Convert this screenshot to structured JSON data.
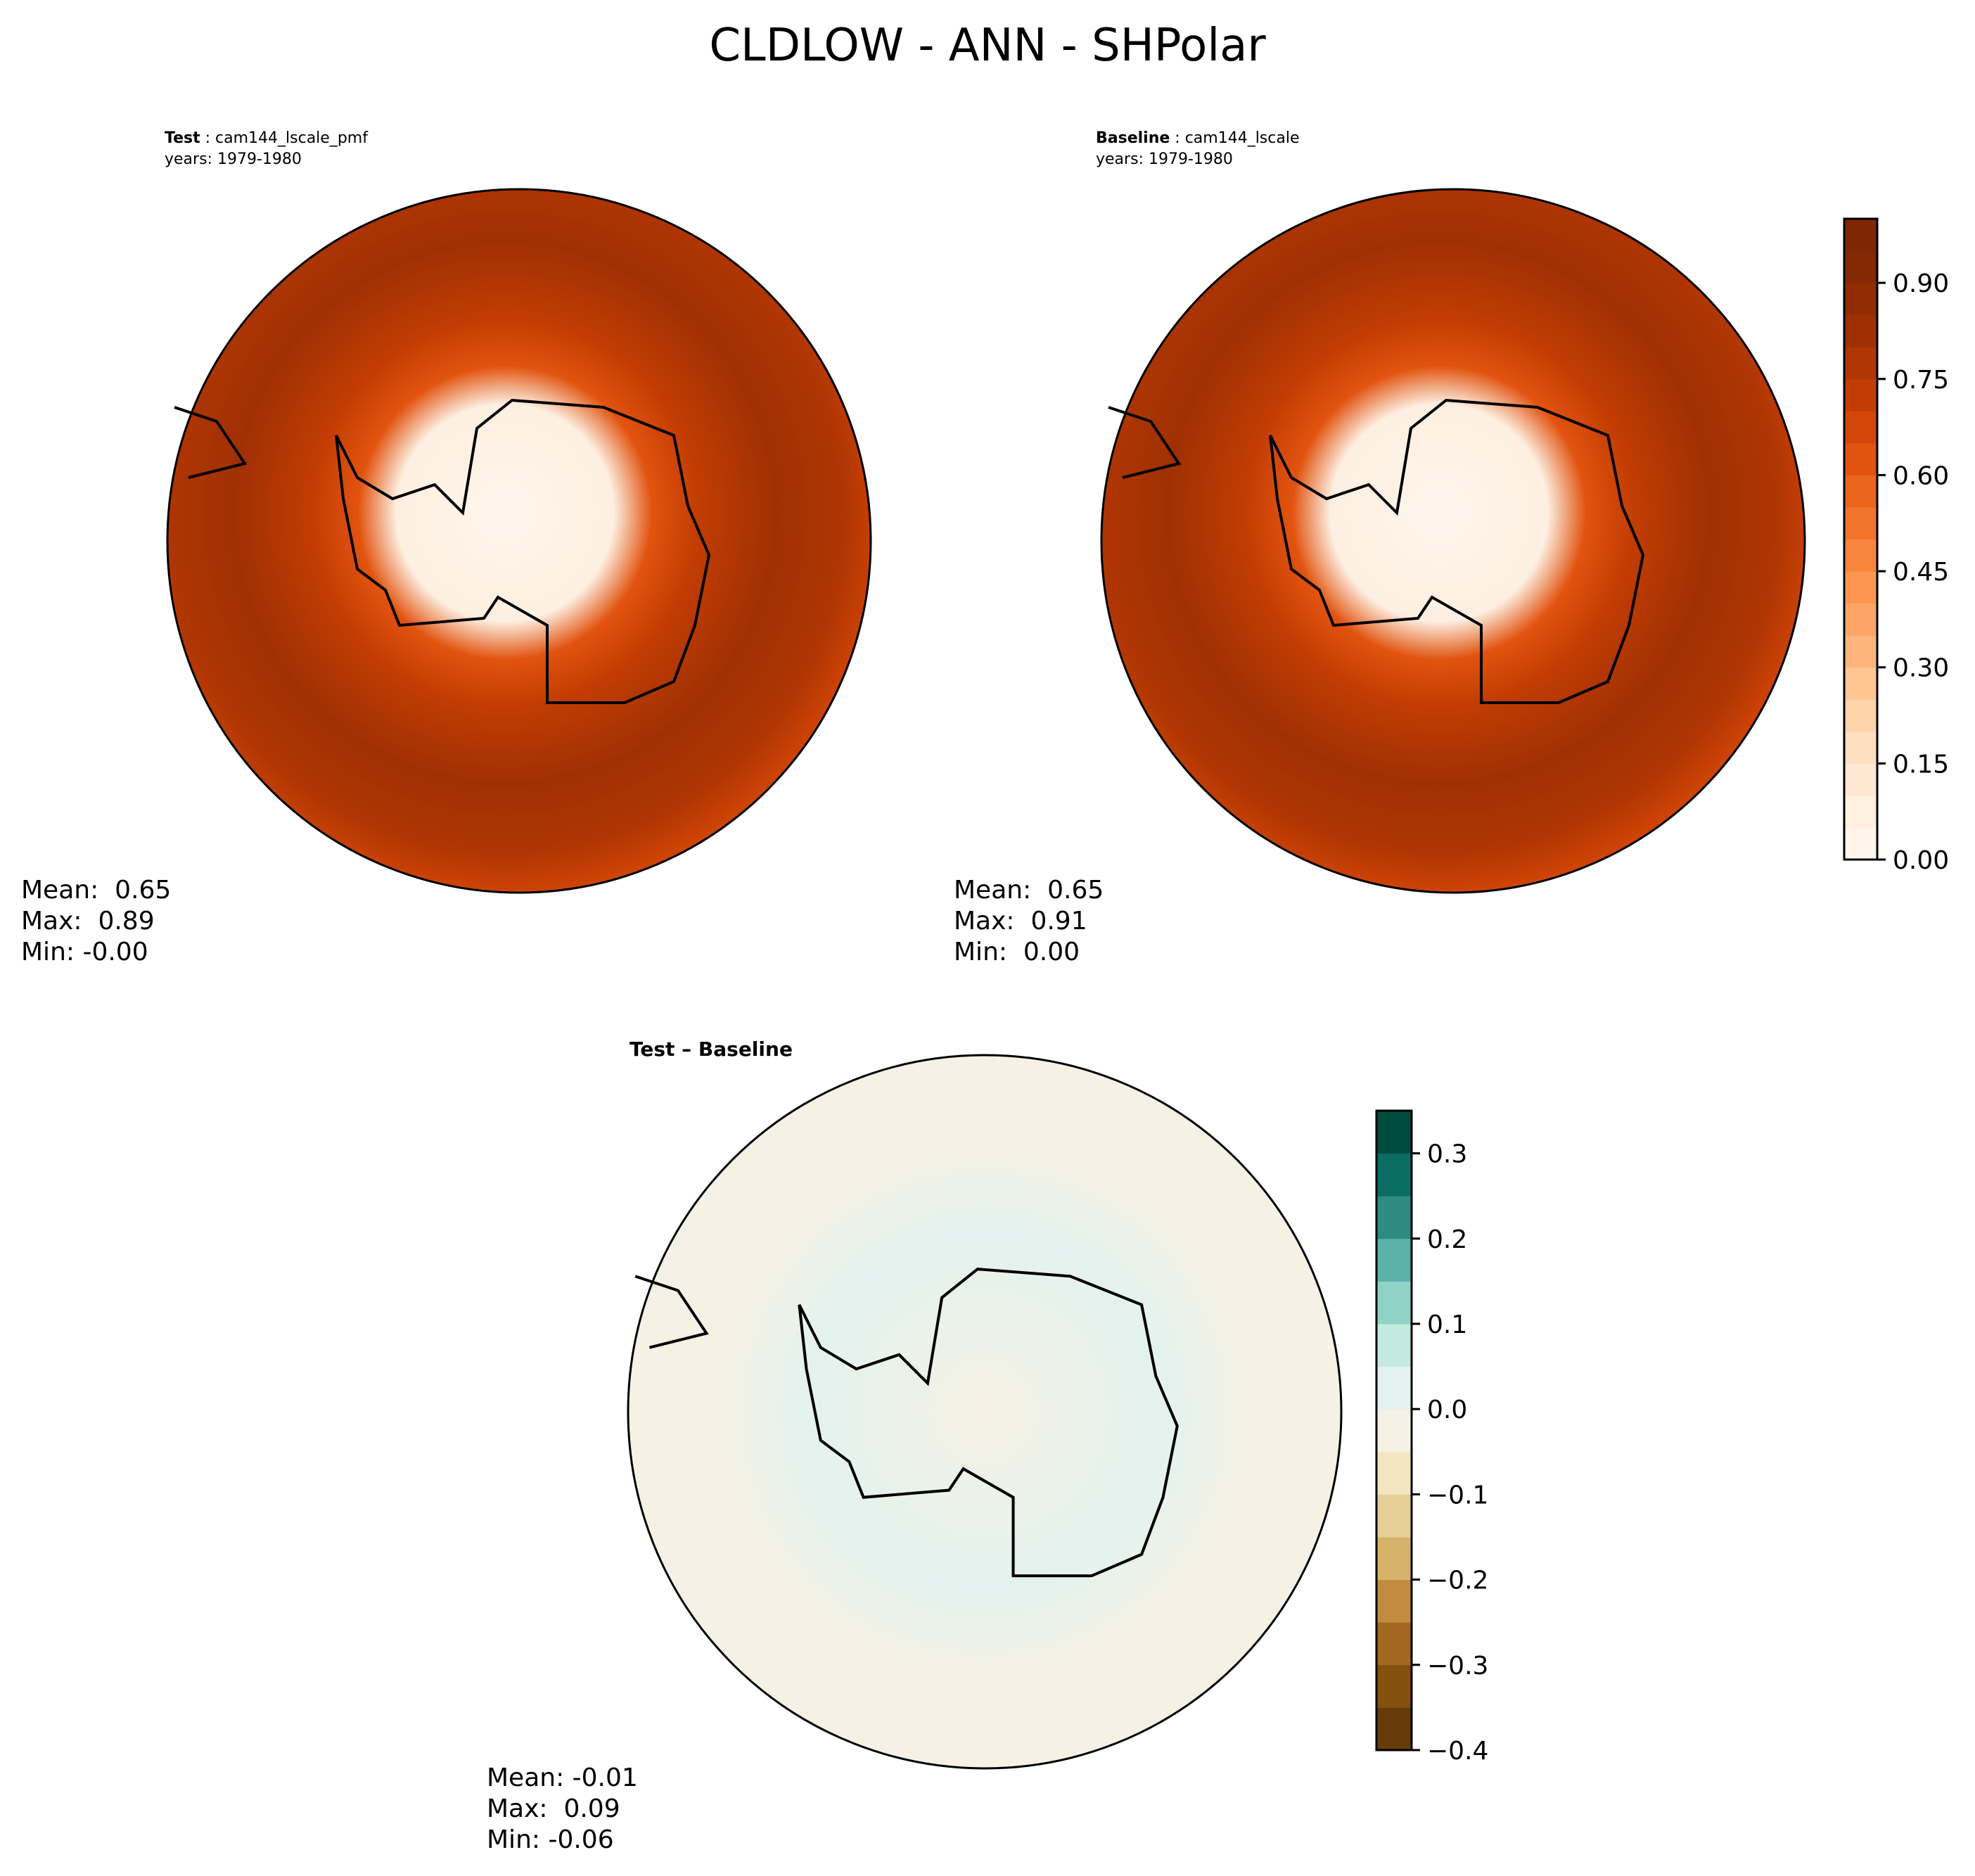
{
  "title": "CLDLOW - ANN - SHPolar",
  "panels": [
    {
      "label_bold": "Test",
      "label_rest": " : cam144_lscale_pmf",
      "years": "years: 1979-1980",
      "stats": {
        "mean": "Mean:  0.65",
        "max": "Max:  0.89",
        "min": "Min: -0.00"
      }
    },
    {
      "label_bold": "Baseline",
      "label_rest": " : cam144_lscale",
      "years": "years: 1979-1980",
      "stats": {
        "mean": "Mean:  0.65",
        "max": "Max:  0.91",
        "min": "Min:  0.00"
      }
    },
    {
      "label_bold": "Test – Baseline",
      "label_rest": "",
      "stats": {
        "mean": "Mean: -0.01",
        "max": "Max:  0.09",
        "min": "Min: -0.06"
      }
    }
  ],
  "chart_data": [
    {
      "type": "heatmap",
      "projection": "south-polar-stereographic",
      "variable": "CLDLOW",
      "panel": "Test",
      "colormap": "Oranges",
      "levels_range": [
        0,
        1.0
      ],
      "level_step": 0.05
    },
    {
      "type": "heatmap",
      "projection": "south-polar-stereographic",
      "variable": "CLDLOW",
      "panel": "Baseline",
      "colormap": "Oranges",
      "levels_range": [
        0,
        1.0
      ],
      "level_step": 0.05
    },
    {
      "type": "heatmap",
      "projection": "south-polar-stereographic",
      "variable": "CLDLOW",
      "panel": "Test - Baseline",
      "colormap": "BrBG",
      "levels_range": [
        -0.4,
        0.35
      ],
      "level_step": 0.05
    }
  ],
  "colorbar_main": {
    "ticks": [
      "0.00",
      "0.15",
      "0.30",
      "0.45",
      "0.60",
      "0.75",
      "0.90"
    ],
    "tick_values": [
      0,
      0.15,
      0.3,
      0.45,
      0.6,
      0.75,
      0.9
    ],
    "range": [
      0,
      1.0
    ],
    "colors": [
      "#fff5eb",
      "#fff0e0",
      "#fee8d3",
      "#fee0c1",
      "#fdd3a9",
      "#fdc692",
      "#fdb57d",
      "#fda566",
      "#fd9650",
      "#f9853f",
      "#f3742d",
      "#eb641c",
      "#e2530f",
      "#d44606",
      "#c23d03",
      "#b03603",
      "#a03003",
      "#912c03",
      "#832903",
      "#7f2704"
    ]
  },
  "colorbar_diff": {
    "ticks": [
      "−0.4",
      "−0.3",
      "−0.2",
      "−0.1",
      "0.0",
      "0.1",
      "0.2",
      "0.3"
    ],
    "tick_values": [
      -0.4,
      -0.3,
      -0.2,
      -0.1,
      0.0,
      0.1,
      0.2,
      0.3
    ],
    "range": [
      -0.4,
      0.35
    ],
    "colors": [
      "#673a09",
      "#83500e",
      "#a3681f",
      "#c28b3f",
      "#d7b26a",
      "#e6cf96",
      "#f3e6c0",
      "#f5f1e4",
      "#e3f2ef",
      "#c3e9e1",
      "#8fd3c6",
      "#5bb2a6",
      "#2e8b82",
      "#0b6c64",
      "#004c3e"
    ]
  }
}
